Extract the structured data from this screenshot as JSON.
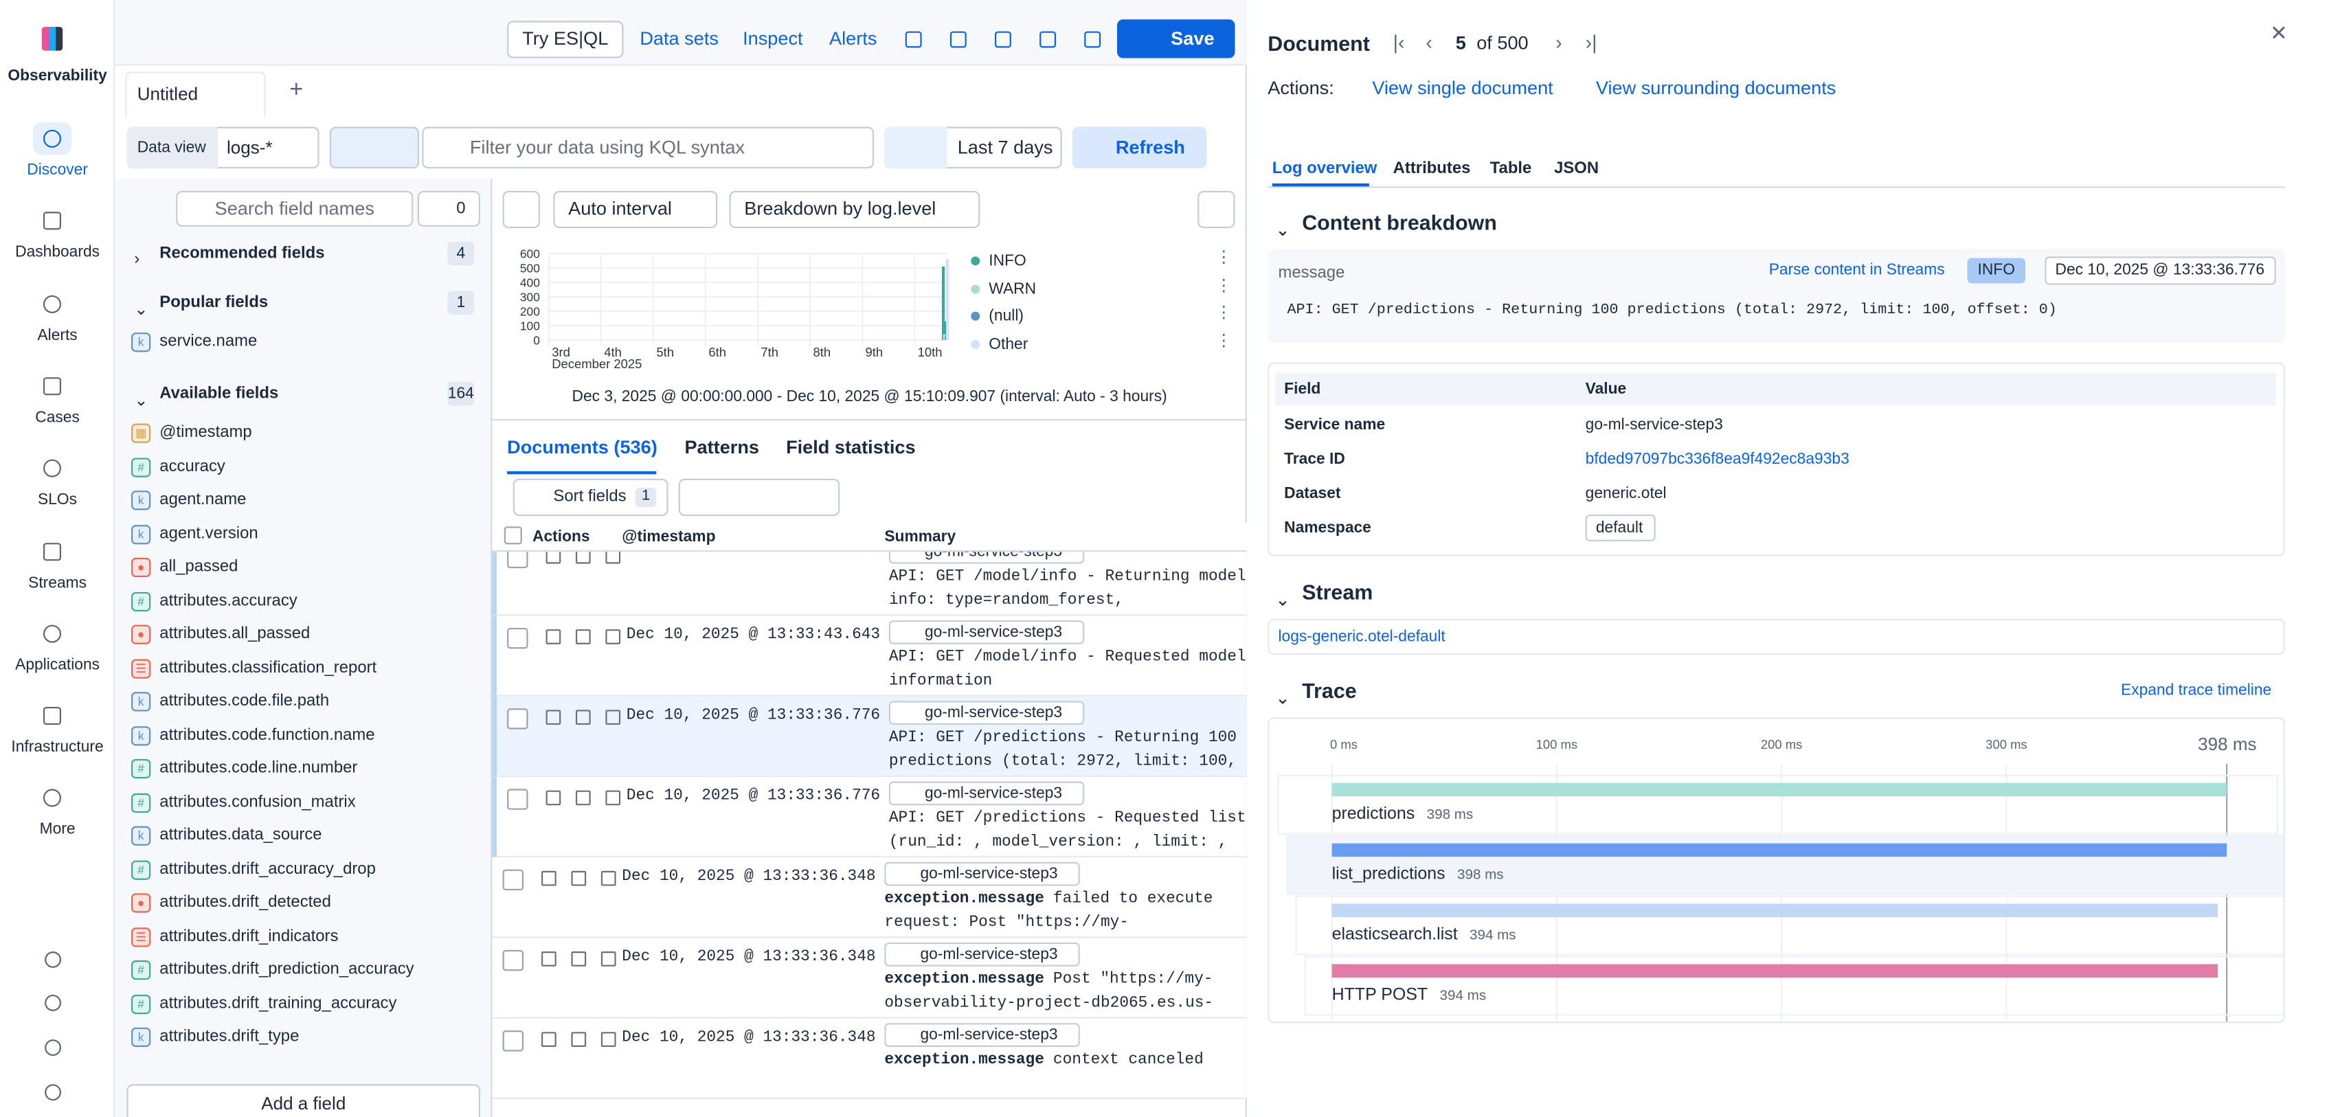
{
  "sidebar": {
    "logo": "Observability",
    "nav": [
      "Discover",
      "Dashboards",
      "Alerts",
      "Cases",
      "SLOs",
      "Streams",
      "Applications",
      "Infrastructure",
      "More"
    ]
  },
  "toolbar": {
    "links": [
      "Try ES|QL",
      "Data sets",
      "Inspect",
      "Alerts"
    ],
    "save": "Save"
  },
  "tab": {
    "title": "Untitled"
  },
  "query": {
    "data_view_label": "Data view",
    "data_view": "logs-*",
    "placeholder": "Filter your data using KQL syntax",
    "time": "Last 7 days",
    "refresh": "Refresh"
  },
  "fields": {
    "search_placeholder": "Search field names",
    "filter_count": 0,
    "groups": [
      {
        "name": "Recommended fields",
        "count": 4
      },
      {
        "name": "Popular fields",
        "count": 1
      },
      {
        "name": "Available fields",
        "count": 164
      }
    ],
    "popular": [
      {
        "type": "keyword",
        "name": "service.name"
      }
    ],
    "available": [
      {
        "type": "date",
        "name": "@timestamp"
      },
      {
        "type": "number",
        "name": "accuracy"
      },
      {
        "type": "keyword",
        "name": "agent.name"
      },
      {
        "type": "keyword",
        "name": "agent.version"
      },
      {
        "type": "boolean",
        "name": "all_passed"
      },
      {
        "type": "number",
        "name": "attributes.accuracy"
      },
      {
        "type": "boolean",
        "name": "attributes.all_passed"
      },
      {
        "type": "object",
        "name": "attributes.classification_report"
      },
      {
        "type": "keyword",
        "name": "attributes.code.file.path"
      },
      {
        "type": "keyword",
        "name": "attributes.code.function.name"
      },
      {
        "type": "number",
        "name": "attributes.code.line.number"
      },
      {
        "type": "number",
        "name": "attributes.confusion_matrix"
      },
      {
        "type": "keyword",
        "name": "attributes.data_source"
      },
      {
        "type": "number",
        "name": "attributes.drift_accuracy_drop"
      },
      {
        "type": "boolean",
        "name": "attributes.drift_detected"
      },
      {
        "type": "object",
        "name": "attributes.drift_indicators"
      },
      {
        "type": "number",
        "name": "attributes.drift_prediction_accuracy"
      },
      {
        "type": "number",
        "name": "attributes.drift_training_accuracy"
      },
      {
        "type": "keyword",
        "name": "attributes.drift_type"
      }
    ],
    "add": "Add a field"
  },
  "histogram": {
    "interval": "Auto interval",
    "breakdown": "Breakdown by log.level",
    "ylim": [
      0,
      600
    ],
    "yticks": [
      0,
      100,
      200,
      300,
      400,
      500,
      600
    ],
    "xlim": [
      3,
      10.65
    ],
    "xticks": [
      {
        "value": 3,
        "label": "3rd"
      },
      {
        "value": 4,
        "label": "4th"
      },
      {
        "value": 5,
        "label": "5th"
      },
      {
        "value": 6,
        "label": "6th"
      },
      {
        "value": 7,
        "label": "7th"
      },
      {
        "value": 8,
        "label": "8th"
      },
      {
        "value": 9,
        "label": "9th"
      },
      {
        "value": 10,
        "label": "10th"
      }
    ],
    "x_sublabel": "December 2025",
    "series": [
      {
        "name": "INFO",
        "color": "#3fa79a",
        "x": [
          10.55,
          10.59
        ],
        "values": [
          510,
          130
        ]
      },
      {
        "name": "WARN",
        "color": "#a6dcd5",
        "x": [
          10.57
        ],
        "values": [
          40
        ]
      },
      {
        "name": "(null)",
        "color": "#6092c0",
        "x": [
          10.61
        ],
        "values": [
          30
        ]
      },
      {
        "name": "Other",
        "color": "#d1e3f6",
        "x": [
          10.63
        ],
        "values": [
          560
        ]
      }
    ],
    "caption": "Dec 3, 2025 @ 00:00:00.000 - Dec 10, 2025 @ 15:10:09.907 (interval: Auto - 3 hours)"
  },
  "documents": {
    "tabs": [
      "Documents (536)",
      "Patterns",
      "Field statistics"
    ],
    "sort": "Sort fields",
    "sort_count": 1,
    "columns": [
      "Actions",
      "@timestamp",
      "Summary"
    ],
    "rows": [
      {
        "service": "go-ml-service-step3",
        "summary": [
          "API: GET /model/info - Returning model",
          "info: type=random_forest,"
        ]
      },
      {
        "timestamp": "Dec 10, 2025 @ 13:33:43.643",
        "service": "go-ml-service-step3",
        "summary": [
          "API: GET /model/info - Requested model",
          "information"
        ]
      },
      {
        "timestamp": "Dec 10, 2025 @ 13:33:36.776",
        "service": "go-ml-service-step3",
        "summary": [
          "API: GET /predictions - Returning 100",
          "predictions (total: 2972, limit: 100,"
        ]
      },
      {
        "timestamp": "Dec 10, 2025 @ 13:33:36.776",
        "service": "go-ml-service-step3",
        "summary": [
          "API: GET /predictions - Requested list",
          "(run_id: , model_version: , limit: ,"
        ]
      },
      {
        "timestamp": "Dec 10, 2025 @ 13:33:36.348",
        "service": "go-ml-service-step3",
        "field": "exception.message",
        "summary": [
          "failed to execute",
          "request: Post \"https://my-"
        ]
      },
      {
        "timestamp": "Dec 10, 2025 @ 13:33:36.348",
        "service": "go-ml-service-step3",
        "field": "exception.message",
        "summary": [
          "Post \"https://my-",
          "observability-project-db2065.es.us-"
        ]
      },
      {
        "timestamp": "Dec 10, 2025 @ 13:33:36.348",
        "service": "go-ml-service-step3",
        "field": "exception.message",
        "summary": [
          "context canceled"
        ]
      }
    ]
  },
  "flyout": {
    "title": "Document",
    "page": 5,
    "of": "of 500",
    "actions_label": "Actions:",
    "actions": [
      "View single document",
      "View surrounding documents"
    ],
    "tabs": [
      "Log overview",
      "Attributes",
      "Table",
      "JSON"
    ],
    "content": {
      "title": "Content breakdown",
      "label": "message",
      "parse": "Parse content in Streams",
      "level": "INFO",
      "timestamp": "Dec 10, 2025 @ 13:33:36.776",
      "message": "API: GET /predictions - Returning 100 predictions (total: 2972, limit: 100, offset: 0)"
    },
    "table": {
      "header": [
        "Field",
        "Value"
      ],
      "rows": [
        [
          "Service name",
          "go-ml-service-step3"
        ],
        [
          "Trace ID",
          "bfded97097bc336f8ea9f492ec8a93b3"
        ],
        [
          "Dataset",
          "generic.otel"
        ],
        [
          "Namespace",
          "default"
        ]
      ]
    },
    "stream": {
      "title": "Stream",
      "name": "logs-generic.otel-default"
    },
    "trace": {
      "title": "Trace",
      "expand": "Expand trace timeline",
      "xlim": [
        0,
        398
      ],
      "xticks": [
        {
          "value": 0,
          "label": "0 ms"
        },
        {
          "value": 100,
          "label": "100 ms"
        },
        {
          "value": 200,
          "label": "200 ms"
        },
        {
          "value": 300,
          "label": "300 ms"
        },
        {
          "value": 398,
          "label": "398 ms"
        }
      ],
      "spans": [
        "predictions",
        "list_predictions",
        "elasticsearch.list",
        "HTTP POST"
      ],
      "values": [
        398,
        398,
        394,
        394
      ],
      "value_labels": [
        "398 ms",
        "398 ms",
        "394 ms",
        "394 ms"
      ],
      "colors": [
        "#a9e1d9",
        "#6a9cf0",
        "#c2d7f5",
        "#e27ba6"
      ]
    }
  }
}
